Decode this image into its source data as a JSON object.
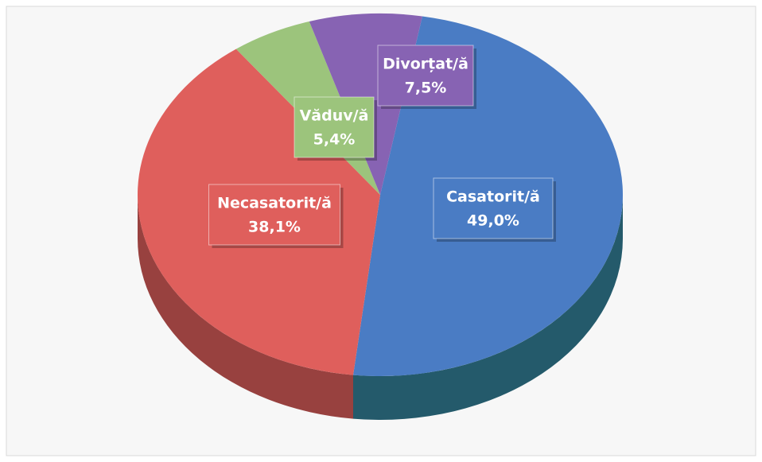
{
  "chart_data": {
    "type": "pie",
    "categories": [
      "Casatorit/ă",
      "Necasatorit/ă",
      "Văduv/ă",
      "Divorțat/ă"
    ],
    "values": [
      49.0,
      38.1,
      5.4,
      7.5
    ],
    "value_labels": [
      "49,0%",
      "38,1%",
      "5,4%",
      "7,5%"
    ],
    "colors": [
      "#4a7cc4",
      "#df5f5c",
      "#9cc47c",
      "#8763b3"
    ]
  }
}
